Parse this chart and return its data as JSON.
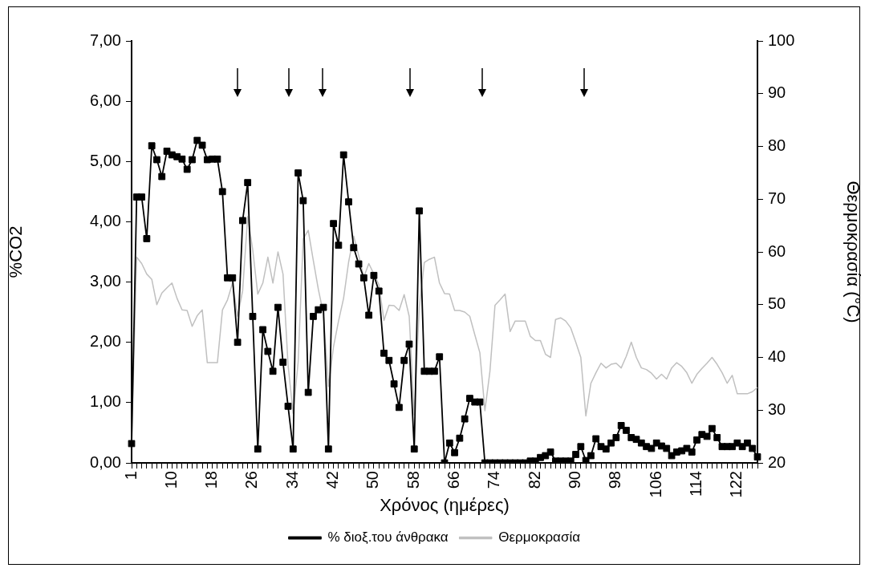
{
  "chart_data": {
    "type": "line",
    "xlabel": "Χρόνος (ημέρες)",
    "ylabel": "%CO2",
    "y2label": "Θερμοκρασία (°C)",
    "categories": [
      "1",
      null,
      null,
      null,
      null,
      null,
      null,
      null,
      "10",
      null,
      null,
      null,
      null,
      null,
      null,
      null,
      "18",
      null,
      null,
      null,
      null,
      null,
      null,
      null,
      "26",
      null,
      null,
      null,
      null,
      null,
      null,
      null,
      "34",
      null,
      null,
      null,
      null,
      null,
      null,
      null,
      "42",
      null,
      null,
      null,
      null,
      null,
      null,
      null,
      "50",
      null,
      null,
      null,
      null,
      null,
      null,
      null,
      "58",
      null,
      null,
      null,
      null,
      null,
      null,
      null,
      "66",
      null,
      null,
      null,
      null,
      null,
      null,
      null,
      "74",
      null,
      null,
      null,
      null,
      null,
      null,
      null,
      "82",
      null,
      null,
      null,
      null,
      null,
      null,
      null,
      "90",
      null,
      null,
      null,
      null,
      null,
      null,
      null,
      "98",
      null,
      null,
      null,
      null,
      null,
      null,
      null,
      "106",
      null,
      null,
      null,
      null,
      null,
      null,
      null,
      "114",
      null,
      null,
      null,
      null,
      null,
      null,
      null,
      "122",
      null,
      null,
      null,
      null
    ],
    "series": [
      {
        "name": "% διοξ.του άνθρακα",
        "color": "#000000",
        "marker": "square",
        "values": [
          0.32,
          4.41,
          4.41,
          3.72,
          5.26,
          5.03,
          4.75,
          5.17,
          5.11,
          5.08,
          5.04,
          4.87,
          5.03,
          5.35,
          5.27,
          5.03,
          5.04,
          5.04,
          4.5,
          3.07,
          3.07,
          2.0,
          4.02,
          4.65,
          2.43,
          0.23,
          2.21,
          1.85,
          1.52,
          2.58,
          1.67,
          0.94,
          0.23,
          4.81,
          4.35,
          1.17,
          2.43,
          2.54,
          2.58,
          0.23,
          3.97,
          3.61,
          5.11,
          4.33,
          3.57,
          3.3,
          3.07,
          2.45,
          3.11,
          2.85,
          1.82,
          1.7,
          1.31,
          0.92,
          1.7,
          1.97,
          0.23,
          4.18,
          1.52,
          1.52,
          1.52,
          1.76,
          0.0,
          0.33,
          0.17,
          0.41,
          0.73,
          1.07,
          1.01,
          1.01,
          0.0,
          0.0,
          0.0,
          0.0,
          0.0,
          0.0,
          0.0,
          0.0,
          0.0,
          0.03,
          0.03,
          0.09,
          0.12,
          0.18,
          0.03,
          0.03,
          0.03,
          0.03,
          0.14,
          0.27,
          0.04,
          0.12,
          0.4,
          0.27,
          0.23,
          0.33,
          0.42,
          0.62,
          0.54,
          0.42,
          0.39,
          0.33,
          0.27,
          0.24,
          0.33,
          0.28,
          0.24,
          0.12,
          0.18,
          0.2,
          0.24,
          0.18,
          0.38,
          0.47,
          0.44,
          0.57,
          0.42,
          0.27,
          0.27,
          0.27,
          0.33,
          0.27,
          0.33,
          0.24,
          0.1
        ]
      },
      {
        "name": "Θερμοκρασία",
        "color": "#c0c0c0",
        "marker": "none",
        "axis": "y2",
        "values": [
          24.2,
          59,
          57.8,
          55.8,
          54.8,
          50,
          52.2,
          53.2,
          54.1,
          51.2,
          49,
          48.9,
          45.9,
          47.9,
          49,
          39,
          39,
          39,
          49,
          50.9,
          54.1,
          47.8,
          52.6,
          66.7,
          60.4,
          52,
          54.1,
          59,
          54.1,
          60,
          55.8,
          38.6,
          29.4,
          39.1,
          62.5,
          64.1,
          58.4,
          52.9,
          48.3,
          34.5,
          42,
          46.9,
          51.2,
          58.1,
          63,
          59.3,
          55.2,
          57.8,
          55.8,
          53.8,
          47,
          49.9,
          49.8,
          48.9,
          51.9,
          47.8,
          29.1,
          49.5,
          58,
          58.6,
          59,
          54.1,
          52.1,
          52,
          48.9,
          48.9,
          48.6,
          47.8,
          44.3,
          40.9,
          29.9,
          37.4,
          49.9,
          50.9,
          52,
          44.9,
          46.9,
          46.9,
          46.9,
          44,
          43.2,
          43.2,
          40.6,
          40,
          47.2,
          47.5,
          46.9,
          45.6,
          42.9,
          40,
          28.9,
          35.1,
          37.1,
          38.9,
          38,
          38.7,
          38.9,
          38,
          40.2,
          42.9,
          40,
          38,
          37.7,
          37,
          35.9,
          36.8,
          35.9,
          38,
          39,
          38.3,
          37.1,
          35.1,
          36.8,
          37.9,
          38.9,
          40,
          38.7,
          37.1,
          35.1,
          36.6,
          33.1,
          33.1,
          33.1,
          33.5,
          34.3
        ]
      }
    ],
    "ylim": [
      0,
      7
    ],
    "yticks": [
      {
        "value": 0,
        "label": "0,00"
      },
      {
        "value": 1,
        "label": "1,00"
      },
      {
        "value": 2,
        "label": "2,00"
      },
      {
        "value": 3,
        "label": "3,00"
      },
      {
        "value": 4,
        "label": "4,00"
      },
      {
        "value": 5,
        "label": "5,00"
      },
      {
        "value": 6,
        "label": "6,00"
      },
      {
        "value": 7,
        "label": "7,00"
      }
    ],
    "y2lim": [
      20,
      100
    ],
    "y2ticks": [
      20,
      30,
      40,
      50,
      60,
      70,
      80,
      90,
      100
    ],
    "legend": "bottom",
    "grid": false,
    "line_style": "solid"
  }
}
